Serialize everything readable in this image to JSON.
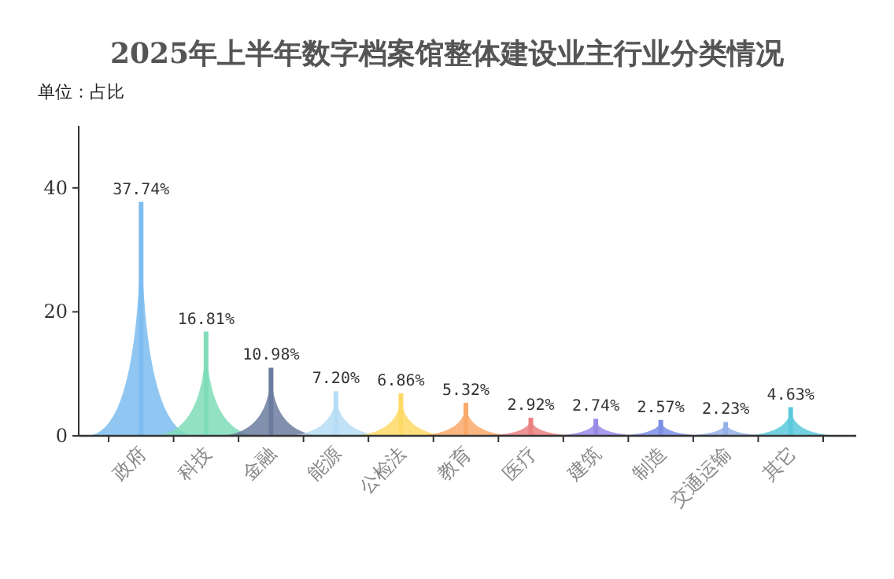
{
  "chart_data": {
    "type": "bar",
    "title": "2025年上半年数字档案馆整体建设业主行业分类情况",
    "subtitle": "单位：占比",
    "categories": [
      "政府",
      "科技",
      "金融",
      "能源",
      "公检法",
      "教育",
      "医疗",
      "建筑",
      "制造",
      "交通运输",
      "其它"
    ],
    "values": [
      37.74,
      16.81,
      10.98,
      7.2,
      6.86,
      5.32,
      2.92,
      2.74,
      2.57,
      2.23,
      4.63
    ],
    "value_labels": [
      "37.74%",
      "16.81%",
      "10.98%",
      "7.20%",
      "6.86%",
      "5.32%",
      "2.92%",
      "2.74%",
      "2.57%",
      "2.23%",
      "4.63%"
    ],
    "colors": [
      "#7dbdf0",
      "#7fdcb9",
      "#6c7c9f",
      "#b6ddf5",
      "#ffd966",
      "#f9a96a",
      "#e98080",
      "#9a8ae6",
      "#7b8fe6",
      "#94b0e6",
      "#5bc8dc"
    ],
    "ylim": [
      0,
      50
    ],
    "yticks": [
      0,
      20,
      40
    ]
  }
}
